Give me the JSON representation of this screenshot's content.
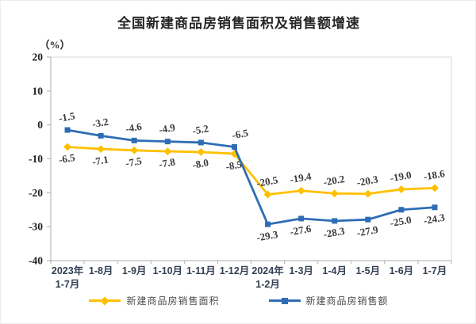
{
  "chart_data": {
    "type": "line",
    "title": "全国新建商品房销售面积及销售额增速",
    "unit_label": "（%）",
    "categories": [
      "2023年\n1-7月",
      "1-8月",
      "1-9月",
      "1-10月",
      "1-11月",
      "1-12月",
      "2024年\n1-2月",
      "1-3月",
      "1-4月",
      "1-5月",
      "1-6月",
      "1-7月"
    ],
    "ylim": [
      -40,
      20
    ],
    "yticks": [
      20,
      10,
      0,
      -10,
      -20,
      -30,
      -40
    ],
    "grid": "off",
    "legend_position": "bottom",
    "series": [
      {
        "name": "新建商品房销售面积",
        "color": "#FFC000",
        "marker": "diamond",
        "values": [
          -6.5,
          -7.1,
          -7.5,
          -7.8,
          -8.0,
          -8.5,
          -20.5,
          -19.4,
          -20.2,
          -20.3,
          -19.0,
          -18.6
        ],
        "label_side": [
          "below",
          "below",
          "below",
          "below",
          "below",
          "below",
          "above",
          "above",
          "above",
          "above",
          "above",
          "above"
        ]
      },
      {
        "name": "新建商品房销售额",
        "color": "#2E6DB5",
        "marker": "square",
        "values": [
          -1.5,
          -3.2,
          -4.6,
          -4.9,
          -5.2,
          -6.5,
          -29.3,
          -27.6,
          -28.3,
          -27.9,
          -25.0,
          -24.3
        ],
        "label_side": [
          "above",
          "above",
          "above",
          "above",
          "above",
          "above",
          "below",
          "below",
          "below",
          "below",
          "below",
          "below"
        ]
      }
    ]
  }
}
